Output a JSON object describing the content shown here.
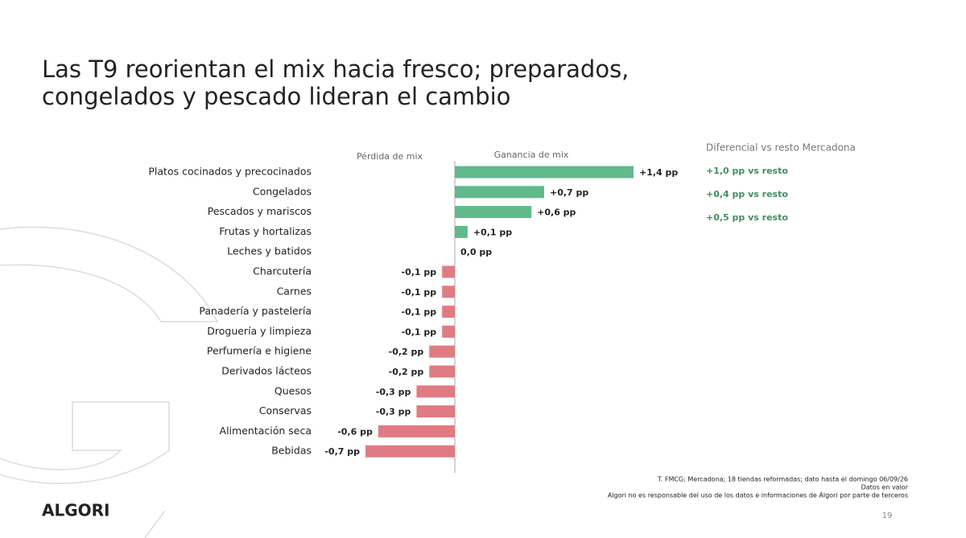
{
  "header": {
    "title_lines": [
      "Las T9 reorientan el mix hacia fresco; preparados,",
      "congelados y pescado lideran el cambio"
    ]
  },
  "chart_data": {
    "type": "bar",
    "orientation": "horizontal",
    "left_header": "Pérdida de mix",
    "right_header": "Ganancia de mix",
    "categories": [
      "Platos cocinados y precocinados",
      "Congelados",
      "Pescados y mariscos",
      "Frutas y hortalizas",
      "Leches y batidos",
      "Charcutería",
      "Carnes",
      "Panadería y pastelería",
      "Droguería y limpieza",
      "Perfumería e higiene",
      "Derivados lácteos",
      "Quesos",
      "Conservas",
      "Alimentación seca",
      "Bebidas"
    ],
    "values": [
      1.4,
      0.7,
      0.6,
      0.1,
      0.0,
      -0.1,
      -0.1,
      -0.1,
      -0.1,
      -0.2,
      -0.2,
      -0.3,
      -0.3,
      -0.6,
      -0.7
    ],
    "value_labels": [
      "+1,4 pp",
      "+0,7 pp",
      "+0,6 pp",
      "+0,1 pp",
      "0,0 pp",
      "-0,1 pp",
      "-0,1 pp",
      "-0,1 pp",
      "-0,1 pp",
      "-0,2 pp",
      "-0,2 pp",
      "-0,3 pp",
      "-0,3 pp",
      "-0,6 pp",
      "-0,7 pp"
    ],
    "positive_color": "#62b98c",
    "negative_color": "#e07b82"
  },
  "differential": {
    "title": "Diferencial vs resto Mercadona",
    "items": [
      "+1,0 pp vs resto",
      "+0,4 pp vs resto",
      "+0,5 pp vs resto"
    ]
  },
  "footer": {
    "notes": [
      "T. FMCG; Mercadona; 18 tiendas reformadas; dato hasta el domingo 06/09/26",
      "Datos en valor",
      "Algori no es responsable del uso de los datos e informaciones de Algori por parte de terceros"
    ],
    "page": "19",
    "logo": "ALGORI"
  }
}
